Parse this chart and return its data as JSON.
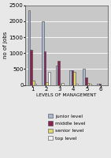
{
  "categories": [
    "1",
    "2",
    "3",
    "4",
    "5",
    "6"
  ],
  "series": {
    "junior level": [
      2350,
      2000,
      600,
      450,
      500,
      50
    ],
    "middle level": [
      1100,
      1050,
      750,
      450,
      250,
      50
    ],
    "senior level": [
      150,
      100,
      50,
      400,
      75,
      0
    ],
    "top level": [
      50,
      400,
      75,
      50,
      50,
      0
    ]
  },
  "colors": {
    "junior level": "#aab8d0",
    "middle level": "#8b2252",
    "senior level": "#e0d870",
    "top level": "#f0f0f0"
  },
  "ylabel": "no of jobs",
  "xlabel": "LEVELS OF MANAGEMENT",
  "ylim": [
    0,
    2500
  ],
  "yticks": [
    0,
    500,
    1000,
    1500,
    2000,
    2500
  ],
  "plot_bg": "#c8c8c8",
  "fig_bg": "#e8e8e8",
  "legend_order": [
    "junior level",
    "middle level",
    "senior level",
    "top level"
  ]
}
